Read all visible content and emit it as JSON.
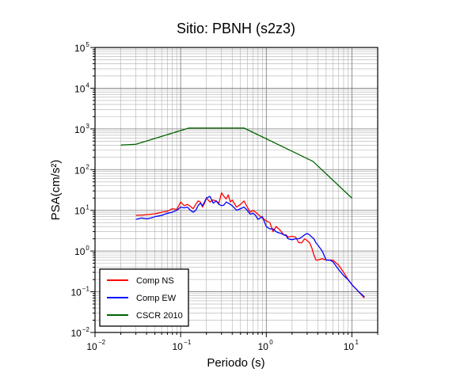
{
  "chart_data": {
    "type": "line",
    "title": "Sitio: PBNH (s2z3)",
    "xlabel": "Periodo (s)",
    "ylabel": "PSA(cm/s²)",
    "xscale": "log",
    "yscale": "log",
    "xlim": [
      0.01,
      20
    ],
    "ylim": [
      0.01,
      100000
    ],
    "x_tick_labels": [
      {
        "base": "10",
        "exp": "−2",
        "value": 0.01
      },
      {
        "base": "10",
        "exp": "−1",
        "value": 0.1
      },
      {
        "base": "10",
        "exp": "0",
        "value": 1
      },
      {
        "base": "10",
        "exp": "1",
        "value": 10
      }
    ],
    "y_tick_labels": [
      {
        "base": "10",
        "exp": "−2",
        "value": 0.01
      },
      {
        "base": "10",
        "exp": "−1",
        "value": 0.1
      },
      {
        "base": "10",
        "exp": "0",
        "value": 1
      },
      {
        "base": "10",
        "exp": "1",
        "value": 10
      },
      {
        "base": "10",
        "exp": "2",
        "value": 100
      },
      {
        "base": "10",
        "exp": "3",
        "value": 1000
      },
      {
        "base": "10",
        "exp": "4",
        "value": 10000
      },
      {
        "base": "10",
        "exp": "5",
        "value": 100000
      }
    ],
    "grid": true,
    "legend_position": "bottom-left",
    "series": [
      {
        "name": "Comp NS",
        "color": "#ff0000",
        "x": [
          0.03,
          0.035,
          0.04,
          0.045,
          0.05,
          0.06,
          0.07,
          0.08,
          0.09,
          0.1,
          0.11,
          0.12,
          0.13,
          0.14,
          0.15,
          0.16,
          0.17,
          0.18,
          0.19,
          0.2,
          0.22,
          0.24,
          0.26,
          0.28,
          0.3,
          0.32,
          0.34,
          0.36,
          0.38,
          0.4,
          0.45,
          0.5,
          0.55,
          0.6,
          0.65,
          0.7,
          0.75,
          0.8,
          0.9,
          1.0,
          1.1,
          1.2,
          1.3,
          1.4,
          1.5,
          1.6,
          1.7,
          1.8,
          2.0,
          2.2,
          2.4,
          2.6,
          2.8,
          3.0,
          3.2,
          3.4,
          3.6,
          3.8,
          4.0,
          4.5,
          5.0,
          5.5,
          6.0,
          7.0,
          8.0,
          9.0,
          10.0,
          12.0,
          14.0
        ],
        "y": [
          7.5,
          7.6,
          7.8,
          8.0,
          8.2,
          9.0,
          9.5,
          11.0,
          10.5,
          16.0,
          13.0,
          14.0,
          12.5,
          11.0,
          14.0,
          17.0,
          16.0,
          12.0,
          15.0,
          20.0,
          16.0,
          18.0,
          17.0,
          15.0,
          27.0,
          22.0,
          19.0,
          24.0,
          16.0,
          18.0,
          12.0,
          14.0,
          17.0,
          12.0,
          9.0,
          10.0,
          9.0,
          8.0,
          6.5,
          5.5,
          5.0,
          3.0,
          4.0,
          3.5,
          3.0,
          2.5,
          2.5,
          2.2,
          2.3,
          2.2,
          1.6,
          1.6,
          2.0,
          1.8,
          1.6,
          1.2,
          0.8,
          0.6,
          0.6,
          0.65,
          0.6,
          0.6,
          0.6,
          0.45,
          0.3,
          0.2,
          0.15,
          0.1,
          0.07
        ]
      },
      {
        "name": "Comp EW",
        "color": "#0000ff",
        "x": [
          0.03,
          0.035,
          0.04,
          0.045,
          0.05,
          0.06,
          0.07,
          0.08,
          0.09,
          0.1,
          0.11,
          0.12,
          0.13,
          0.14,
          0.15,
          0.16,
          0.17,
          0.18,
          0.19,
          0.2,
          0.22,
          0.24,
          0.26,
          0.28,
          0.3,
          0.32,
          0.34,
          0.36,
          0.38,
          0.4,
          0.45,
          0.5,
          0.55,
          0.6,
          0.65,
          0.7,
          0.75,
          0.8,
          0.9,
          1.0,
          1.1,
          1.2,
          1.3,
          1.4,
          1.5,
          1.6,
          1.7,
          1.8,
          2.0,
          2.2,
          2.4,
          2.6,
          2.8,
          3.0,
          3.2,
          3.4,
          3.6,
          3.8,
          4.0,
          4.5,
          5.0,
          5.5,
          6.0,
          7.0,
          8.0,
          9.0,
          10.0,
          12.0,
          14.0
        ],
        "y": [
          6.0,
          6.5,
          6.2,
          6.5,
          7.0,
          7.5,
          8.5,
          9.0,
          10.0,
          12.0,
          11.5,
          12.0,
          10.0,
          9.0,
          10.0,
          13.0,
          15.0,
          13.0,
          16.0,
          20.0,
          22.0,
          15.0,
          17.0,
          14.0,
          13.0,
          13.5,
          16.0,
          15.0,
          14.0,
          13.0,
          10.0,
          11.0,
          12.0,
          10.0,
          8.0,
          8.5,
          7.5,
          6.0,
          7.0,
          4.0,
          3.5,
          3.5,
          3.0,
          2.8,
          2.7,
          2.5,
          2.4,
          2.0,
          1.9,
          2.0,
          2.0,
          2.2,
          2.5,
          2.7,
          2.5,
          2.2,
          2.0,
          1.6,
          1.4,
          1.0,
          0.6,
          0.6,
          0.55,
          0.35,
          0.25,
          0.2,
          0.15,
          0.1,
          0.075
        ]
      },
      {
        "name": "CSCR 2010",
        "color": "#006400",
        "x": [
          0.02,
          0.03,
          0.125,
          0.55,
          3.5,
          10.0
        ],
        "y": [
          400,
          420,
          1050,
          1050,
          160,
          20
        ]
      }
    ]
  }
}
